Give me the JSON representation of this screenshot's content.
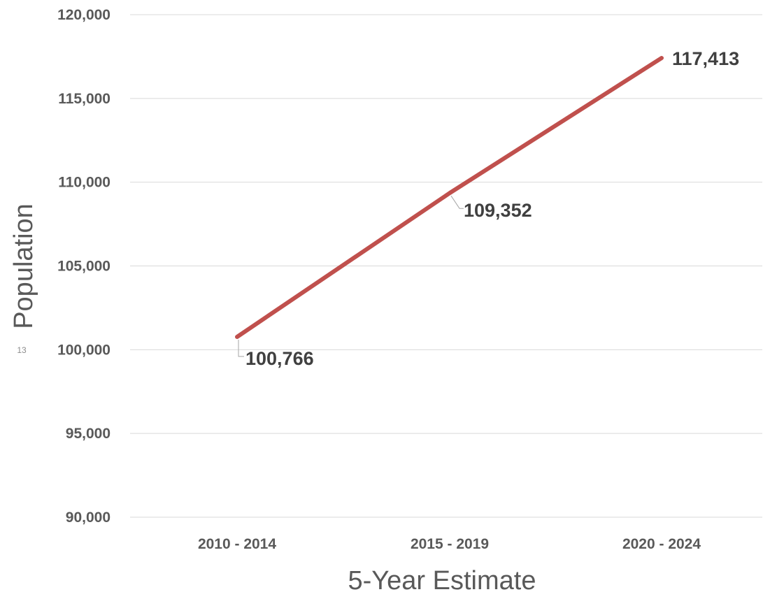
{
  "chart_data": {
    "type": "line",
    "categories": [
      "2010 - 2014",
      "2015 - 2019",
      "2020 - 2024"
    ],
    "series": [
      {
        "values": [
          100766,
          109352,
          117413
        ]
      }
    ],
    "data_labels": [
      "100,766",
      "109,352",
      "117,413"
    ],
    "xlabel": "5-Year Estimate",
    "ylabel": "Population",
    "ylim": [
      90000,
      120000
    ],
    "yticks": [
      90000,
      95000,
      100000,
      105000,
      110000,
      115000,
      120000
    ],
    "ytick_labels": [
      "90,000",
      "95,000",
      "100,000",
      "105,000",
      "110,000",
      "115,000",
      "120,000"
    ],
    "grid": true,
    "legend": "none",
    "line_color": "#C0504D",
    "grid_color": "#D9D9D9",
    "text_color": "#595959"
  },
  "slide_number": "13"
}
